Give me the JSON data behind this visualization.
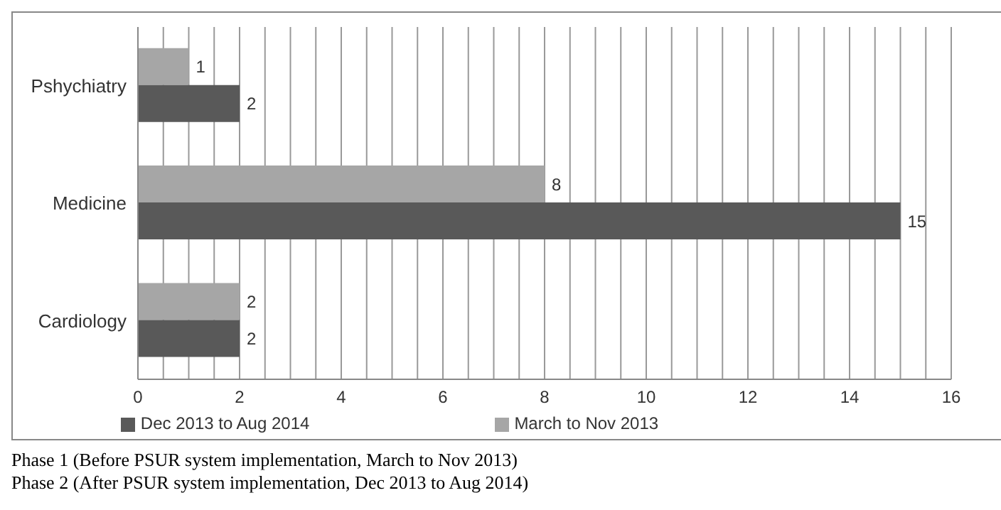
{
  "chart_data": {
    "type": "bar",
    "orientation": "horizontal",
    "categories": [
      "Pshychiatry",
      "Medicine",
      "Cardiology"
    ],
    "series": [
      {
        "name": "March to Nov 2013",
        "color": "#a6a6a6",
        "values": [
          1,
          8,
          2
        ]
      },
      {
        "name": "Dec 2013 to Aug 2014",
        "color": "#595959",
        "values": [
          2,
          15,
          2
        ]
      }
    ],
    "xlim": [
      0,
      16
    ],
    "xticks": [
      0,
      {
        "value": 0.5,
        "label": null
      },
      {
        "value": 1,
        "label": null
      },
      {
        "value": 1.5,
        "label": null
      },
      2,
      {
        "value": 2.5,
        "label": null
      },
      {
        "value": 3,
        "label": null
      },
      {
        "value": 3.5,
        "label": null
      },
      4,
      {
        "value": 4.5,
        "label": null
      },
      {
        "value": 5,
        "label": null
      },
      {
        "value": 5.5,
        "label": null
      },
      6,
      {
        "value": 6.5,
        "label": null
      },
      {
        "value": 7,
        "label": null
      },
      {
        "value": 7.5,
        "label": null
      },
      8,
      {
        "value": 8.5,
        "label": null
      },
      {
        "value": 9,
        "label": null
      },
      {
        "value": 9.5,
        "label": null
      },
      10,
      {
        "value": 10.5,
        "label": null
      },
      {
        "value": 11,
        "label": null
      },
      {
        "value": 11.5,
        "label": null
      },
      12,
      {
        "value": 12.5,
        "label": null
      },
      {
        "value": 13,
        "label": null
      },
      {
        "value": 13.5,
        "label": null
      },
      14,
      {
        "value": 14.5,
        "label": null
      },
      {
        "value": 15,
        "label": null
      },
      {
        "value": 15.5,
        "label": null
      },
      16
    ],
    "grid": "x",
    "legend": "bottom",
    "data_labels": true,
    "annotations": [
      "Phase 1 (Before PSUR system implementation, March to Nov 2013)",
      "Phase 2 (After PSUR system implementation, Dec 2013 to Aug 2014)"
    ]
  }
}
